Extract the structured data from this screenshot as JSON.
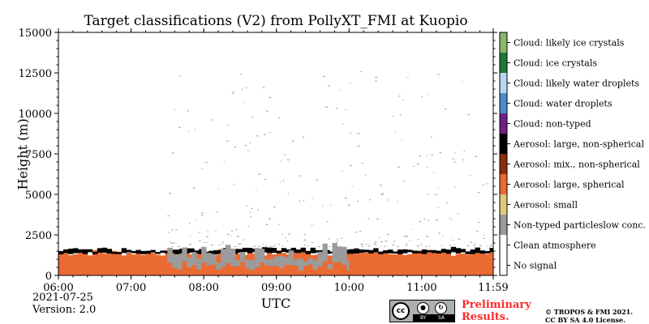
{
  "chart_data": {
    "type": "heatmap",
    "title": "Target classifications (V2) from PollyXT_FMI at Kuopio",
    "xlabel": "UTC",
    "ylabel": "Height (m)",
    "x_ticks": [
      "06:00",
      "07:00",
      "08:00",
      "09:00",
      "10:00",
      "11:00",
      "11:59"
    ],
    "x_range": [
      "06:00",
      "11:59"
    ],
    "y_ticks": [
      0,
      2500,
      5000,
      7500,
      10000,
      12500,
      15000
    ],
    "ylim": [
      0,
      15000
    ],
    "colorbar": {
      "placement": "right",
      "classes": [
        {
          "label": "No signal",
          "color": "#ffffff"
        },
        {
          "label": "Clean atmosphere",
          "color": "#ffffff"
        },
        {
          "label": "Non-typed particleslow conc.",
          "color": "#9b9b9b"
        },
        {
          "label": "Aerosol: small",
          "color": "#e0c878"
        },
        {
          "label": "Aerosol: large, spherical",
          "color": "#eb6a32"
        },
        {
          "label": "Aerosol: mix., non-spherical",
          "color": "#8c2d0a"
        },
        {
          "label": "Aerosol: large, non-spherical",
          "color": "#000000"
        },
        {
          "label": "Cloud: non-typed",
          "color": "#6f1f87"
        },
        {
          "label": "Cloud: water droplets",
          "color": "#4a8cc9"
        },
        {
          "label": "Cloud: likely water droplets",
          "color": "#b7d7f0"
        },
        {
          "label": "Cloud: ice crystals",
          "color": "#1f7a3a"
        },
        {
          "label": "Cloud: likely ice crystals",
          "color": "#8ab86a"
        }
      ]
    },
    "layers": [
      {
        "class": "Aerosol: large, spherical",
        "from": "06:00",
        "to": "11:59",
        "bottom_m": 0,
        "top_m": 1600
      },
      {
        "class": "Aerosol: large, non-spherical",
        "from": "06:00",
        "to": "11:59",
        "bottom_m": 1300,
        "top_m": 1700
      },
      {
        "class": "Non-typed particleslow conc.",
        "from": "07:30",
        "to": "10:00",
        "bottom_m": 300,
        "top_m": 2500
      }
    ]
  },
  "footer": {
    "date": "2021-07-25",
    "version": "Version: 2.0",
    "preliminary_line1": "Preliminary",
    "preliminary_line2": "Results.",
    "copyright_line1": "© TROPOS & FMI 2021.",
    "copyright_line2": "CC BY SA 4.0 License.",
    "license_badge": {
      "cc": "cc",
      "by": "BY",
      "sa": "SA"
    }
  }
}
